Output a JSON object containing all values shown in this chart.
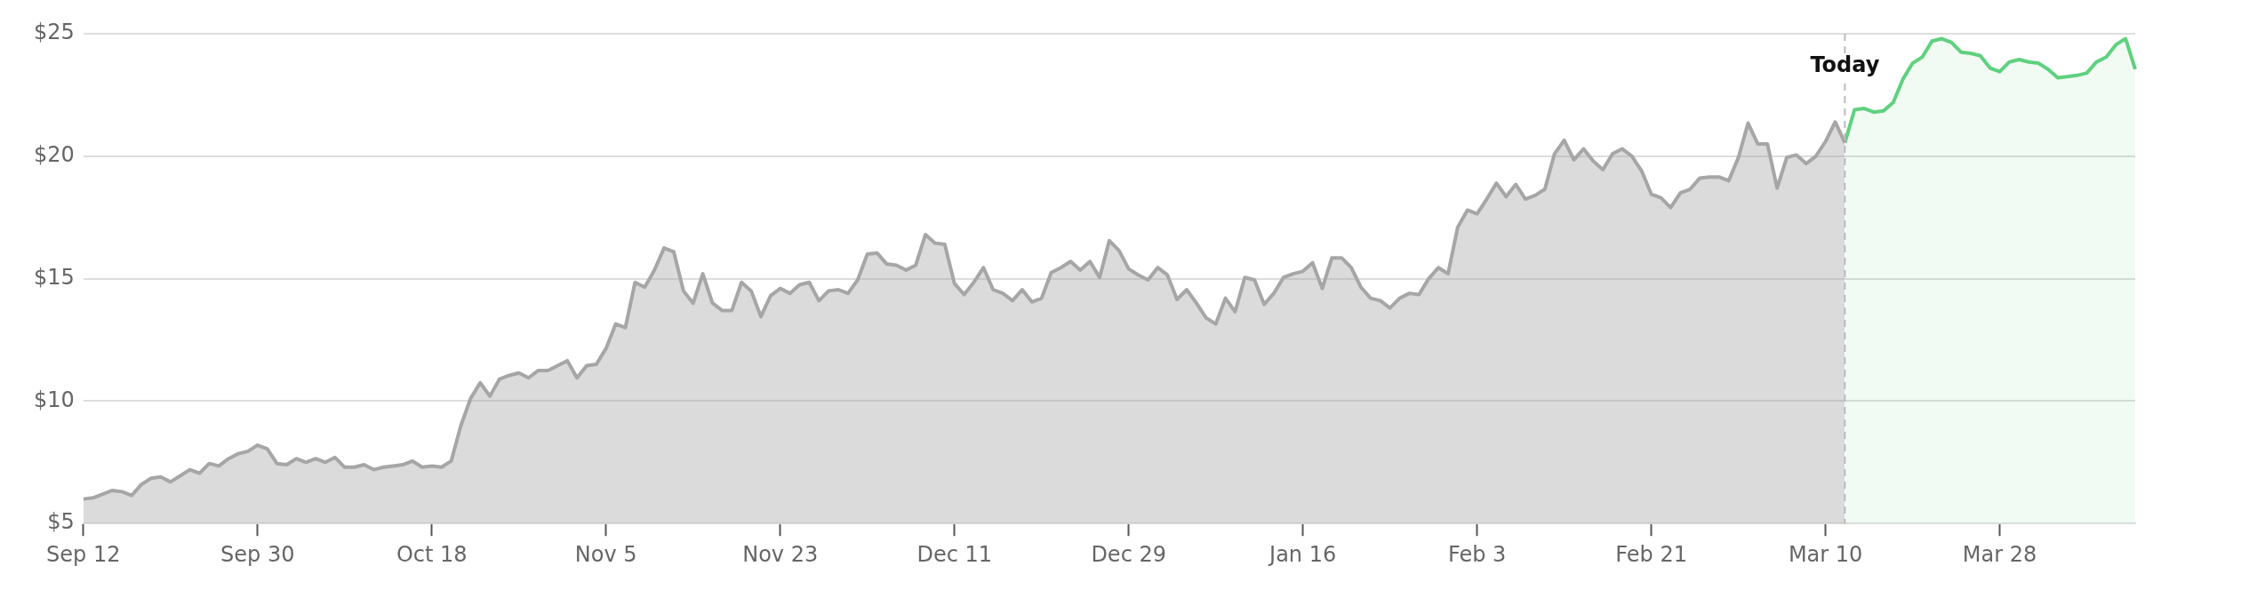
{
  "chart_data": {
    "type": "area",
    "ylim": [
      5,
      25
    ],
    "yticks": [
      {
        "value": 5,
        "label": "$5"
      },
      {
        "value": 10,
        "label": "$10"
      },
      {
        "value": 15,
        "label": "$15"
      },
      {
        "value": 20,
        "label": "$20"
      },
      {
        "value": 25,
        "label": "$25"
      }
    ],
    "categories": [
      "Sep 12",
      null,
      null,
      null,
      null,
      null,
      null,
      null,
      null,
      null,
      null,
      null,
      null,
      null,
      null,
      null,
      null,
      null,
      "Sep 30",
      null,
      null,
      null,
      null,
      null,
      null,
      null,
      null,
      null,
      null,
      null,
      null,
      null,
      null,
      null,
      null,
      null,
      "Oct 18",
      null,
      null,
      null,
      null,
      null,
      null,
      null,
      null,
      null,
      null,
      null,
      null,
      null,
      null,
      null,
      null,
      null,
      "Nov 5",
      null,
      null,
      null,
      null,
      null,
      null,
      null,
      null,
      null,
      null,
      null,
      null,
      null,
      null,
      null,
      null,
      null,
      "Nov 23",
      null,
      null,
      null,
      null,
      null,
      null,
      null,
      null,
      null,
      null,
      null,
      null,
      null,
      null,
      null,
      null,
      null,
      "Dec 11",
      null,
      null,
      null,
      null,
      null,
      null,
      null,
      null,
      null,
      null,
      null,
      null,
      null,
      null,
      null,
      null,
      null,
      "Dec 29",
      null,
      null,
      null,
      null,
      null,
      null,
      null,
      null,
      null,
      null,
      null,
      null,
      null,
      null,
      null,
      null,
      null,
      "Jan 16",
      null,
      null,
      null,
      null,
      null,
      null,
      null,
      null,
      null,
      null,
      null,
      null,
      null,
      null,
      null,
      null,
      null,
      "Feb 3",
      null,
      null,
      null,
      null,
      null,
      null,
      null,
      null,
      null,
      null,
      null,
      null,
      null,
      null,
      null,
      null,
      null,
      "Feb 21",
      null,
      null,
      null,
      null,
      null,
      null,
      null,
      null,
      null,
      null,
      null,
      null,
      null,
      null,
      null,
      null,
      null,
      "Mar 10",
      null,
      null,
      null,
      null,
      null,
      null,
      null,
      null,
      null,
      null,
      null,
      null,
      null,
      null,
      null,
      null,
      null,
      "Mar 28",
      null,
      null,
      null,
      null,
      null,
      null,
      null,
      null,
      null,
      null,
      null,
      null,
      null,
      null
    ],
    "grid": "y",
    "marker": "none",
    "line_style": "solid",
    "annotations": [
      "Today"
    ],
    "series": [
      {
        "color": "#a6a6a6",
        "values": [
          6.0,
          6.05,
          6.2,
          6.35,
          6.3,
          6.15,
          6.6,
          6.85,
          6.9,
          6.7,
          6.95,
          7.2,
          7.05,
          7.45,
          7.35,
          7.65,
          7.85,
          7.95,
          8.2,
          8.05,
          7.45,
          7.4,
          7.65,
          7.5,
          7.65,
          7.5,
          7.7,
          7.3,
          7.3,
          7.4,
          7.2,
          7.3,
          7.35,
          7.4,
          7.55,
          7.3,
          7.35,
          7.3,
          7.55,
          9.0,
          10.1,
          10.75,
          10.2,
          10.9,
          11.05,
          11.15,
          10.95,
          11.25,
          11.25,
          11.45,
          11.65,
          10.95,
          11.45,
          11.5,
          12.15,
          13.15,
          13.0,
          14.85,
          14.65,
          15.35,
          16.25,
          16.1,
          14.5,
          14.0,
          15.2,
          14.0,
          13.7,
          13.7,
          14.85,
          14.5,
          13.45,
          14.3,
          14.6,
          14.4,
          14.75,
          14.85,
          14.1,
          14.5,
          14.55,
          14.4,
          14.95,
          16.0,
          16.05,
          15.6,
          15.55,
          15.35,
          15.55,
          16.8,
          16.45,
          16.4,
          14.8,
          14.35,
          14.85,
          15.45,
          14.55,
          14.4,
          14.1,
          14.55,
          14.05,
          14.2,
          15.25,
          15.45,
          15.7,
          15.35,
          15.7,
          15.05,
          16.55,
          16.15,
          15.4,
          15.15,
          14.95,
          15.45,
          15.15,
          14.15,
          14.55,
          14.0,
          13.4,
          13.15,
          14.2,
          13.65,
          15.05,
          14.95,
          13.95,
          14.4,
          15.05,
          15.2,
          15.3,
          15.65,
          14.6,
          15.85,
          15.85,
          15.45,
          14.65,
          14.2,
          14.1,
          13.8,
          14.2,
          14.4,
          14.35,
          15.0,
          15.45,
          15.2,
          17.1,
          17.8,
          17.65,
          18.25,
          18.9,
          18.35,
          18.85,
          18.25,
          18.4,
          18.65,
          20.1,
          20.65,
          19.85,
          20.3,
          19.8,
          19.45,
          20.1,
          20.3,
          20.0,
          19.4,
          18.45,
          18.3,
          17.9,
          18.5,
          18.65,
          19.1,
          19.15,
          19.15,
          19.0,
          19.95,
          21.35,
          20.5,
          20.5,
          18.7,
          19.95,
          20.05,
          19.7,
          20.0,
          20.6,
          21.4,
          20.55,
          null,
          null,
          null,
          null,
          null,
          null,
          null,
          null,
          null,
          null,
          null,
          null,
          null,
          null,
          null,
          null,
          null,
          null,
          null,
          null,
          null,
          null,
          null,
          null,
          null,
          null,
          null,
          null,
          null,
          null
        ]
      },
      {
        "color": "#5fd17f",
        "values": [
          null,
          null,
          null,
          null,
          null,
          null,
          null,
          null,
          null,
          null,
          null,
          null,
          null,
          null,
          null,
          null,
          null,
          null,
          null,
          null,
          null,
          null,
          null,
          null,
          null,
          null,
          null,
          null,
          null,
          null,
          null,
          null,
          null,
          null,
          null,
          null,
          null,
          null,
          null,
          null,
          null,
          null,
          null,
          null,
          null,
          null,
          null,
          null,
          null,
          null,
          null,
          null,
          null,
          null,
          null,
          null,
          null,
          null,
          null,
          null,
          null,
          null,
          null,
          null,
          null,
          null,
          null,
          null,
          null,
          null,
          null,
          null,
          null,
          null,
          null,
          null,
          null,
          null,
          null,
          null,
          null,
          null,
          null,
          null,
          null,
          null,
          null,
          null,
          null,
          null,
          null,
          null,
          null,
          null,
          null,
          null,
          null,
          null,
          null,
          null,
          null,
          null,
          null,
          null,
          null,
          null,
          null,
          null,
          null,
          null,
          null,
          null,
          null,
          null,
          null,
          null,
          null,
          null,
          null,
          null,
          null,
          null,
          null,
          null,
          null,
          null,
          null,
          null,
          null,
          null,
          null,
          null,
          null,
          null,
          null,
          null,
          null,
          null,
          null,
          null,
          null,
          null,
          null,
          null,
          null,
          null,
          null,
          null,
          null,
          null,
          null,
          null,
          null,
          null,
          null,
          null,
          null,
          null,
          null,
          null,
          null,
          null,
          null,
          null,
          null,
          null,
          null,
          null,
          null,
          null,
          null,
          null,
          null,
          null,
          null,
          null,
          null,
          null,
          null,
          null,
          null,
          null,
          20.55,
          21.9,
          21.95,
          21.8,
          21.85,
          22.2,
          23.15,
          23.8,
          24.05,
          24.7,
          24.8,
          24.65,
          24.25,
          24.2,
          24.1,
          23.6,
          23.45,
          23.85,
          23.95,
          23.85,
          23.8,
          23.55,
          23.2,
          23.25,
          23.3,
          23.4,
          23.85,
          24.05,
          24.55,
          24.8,
          23.55
        ]
      }
    ]
  }
}
